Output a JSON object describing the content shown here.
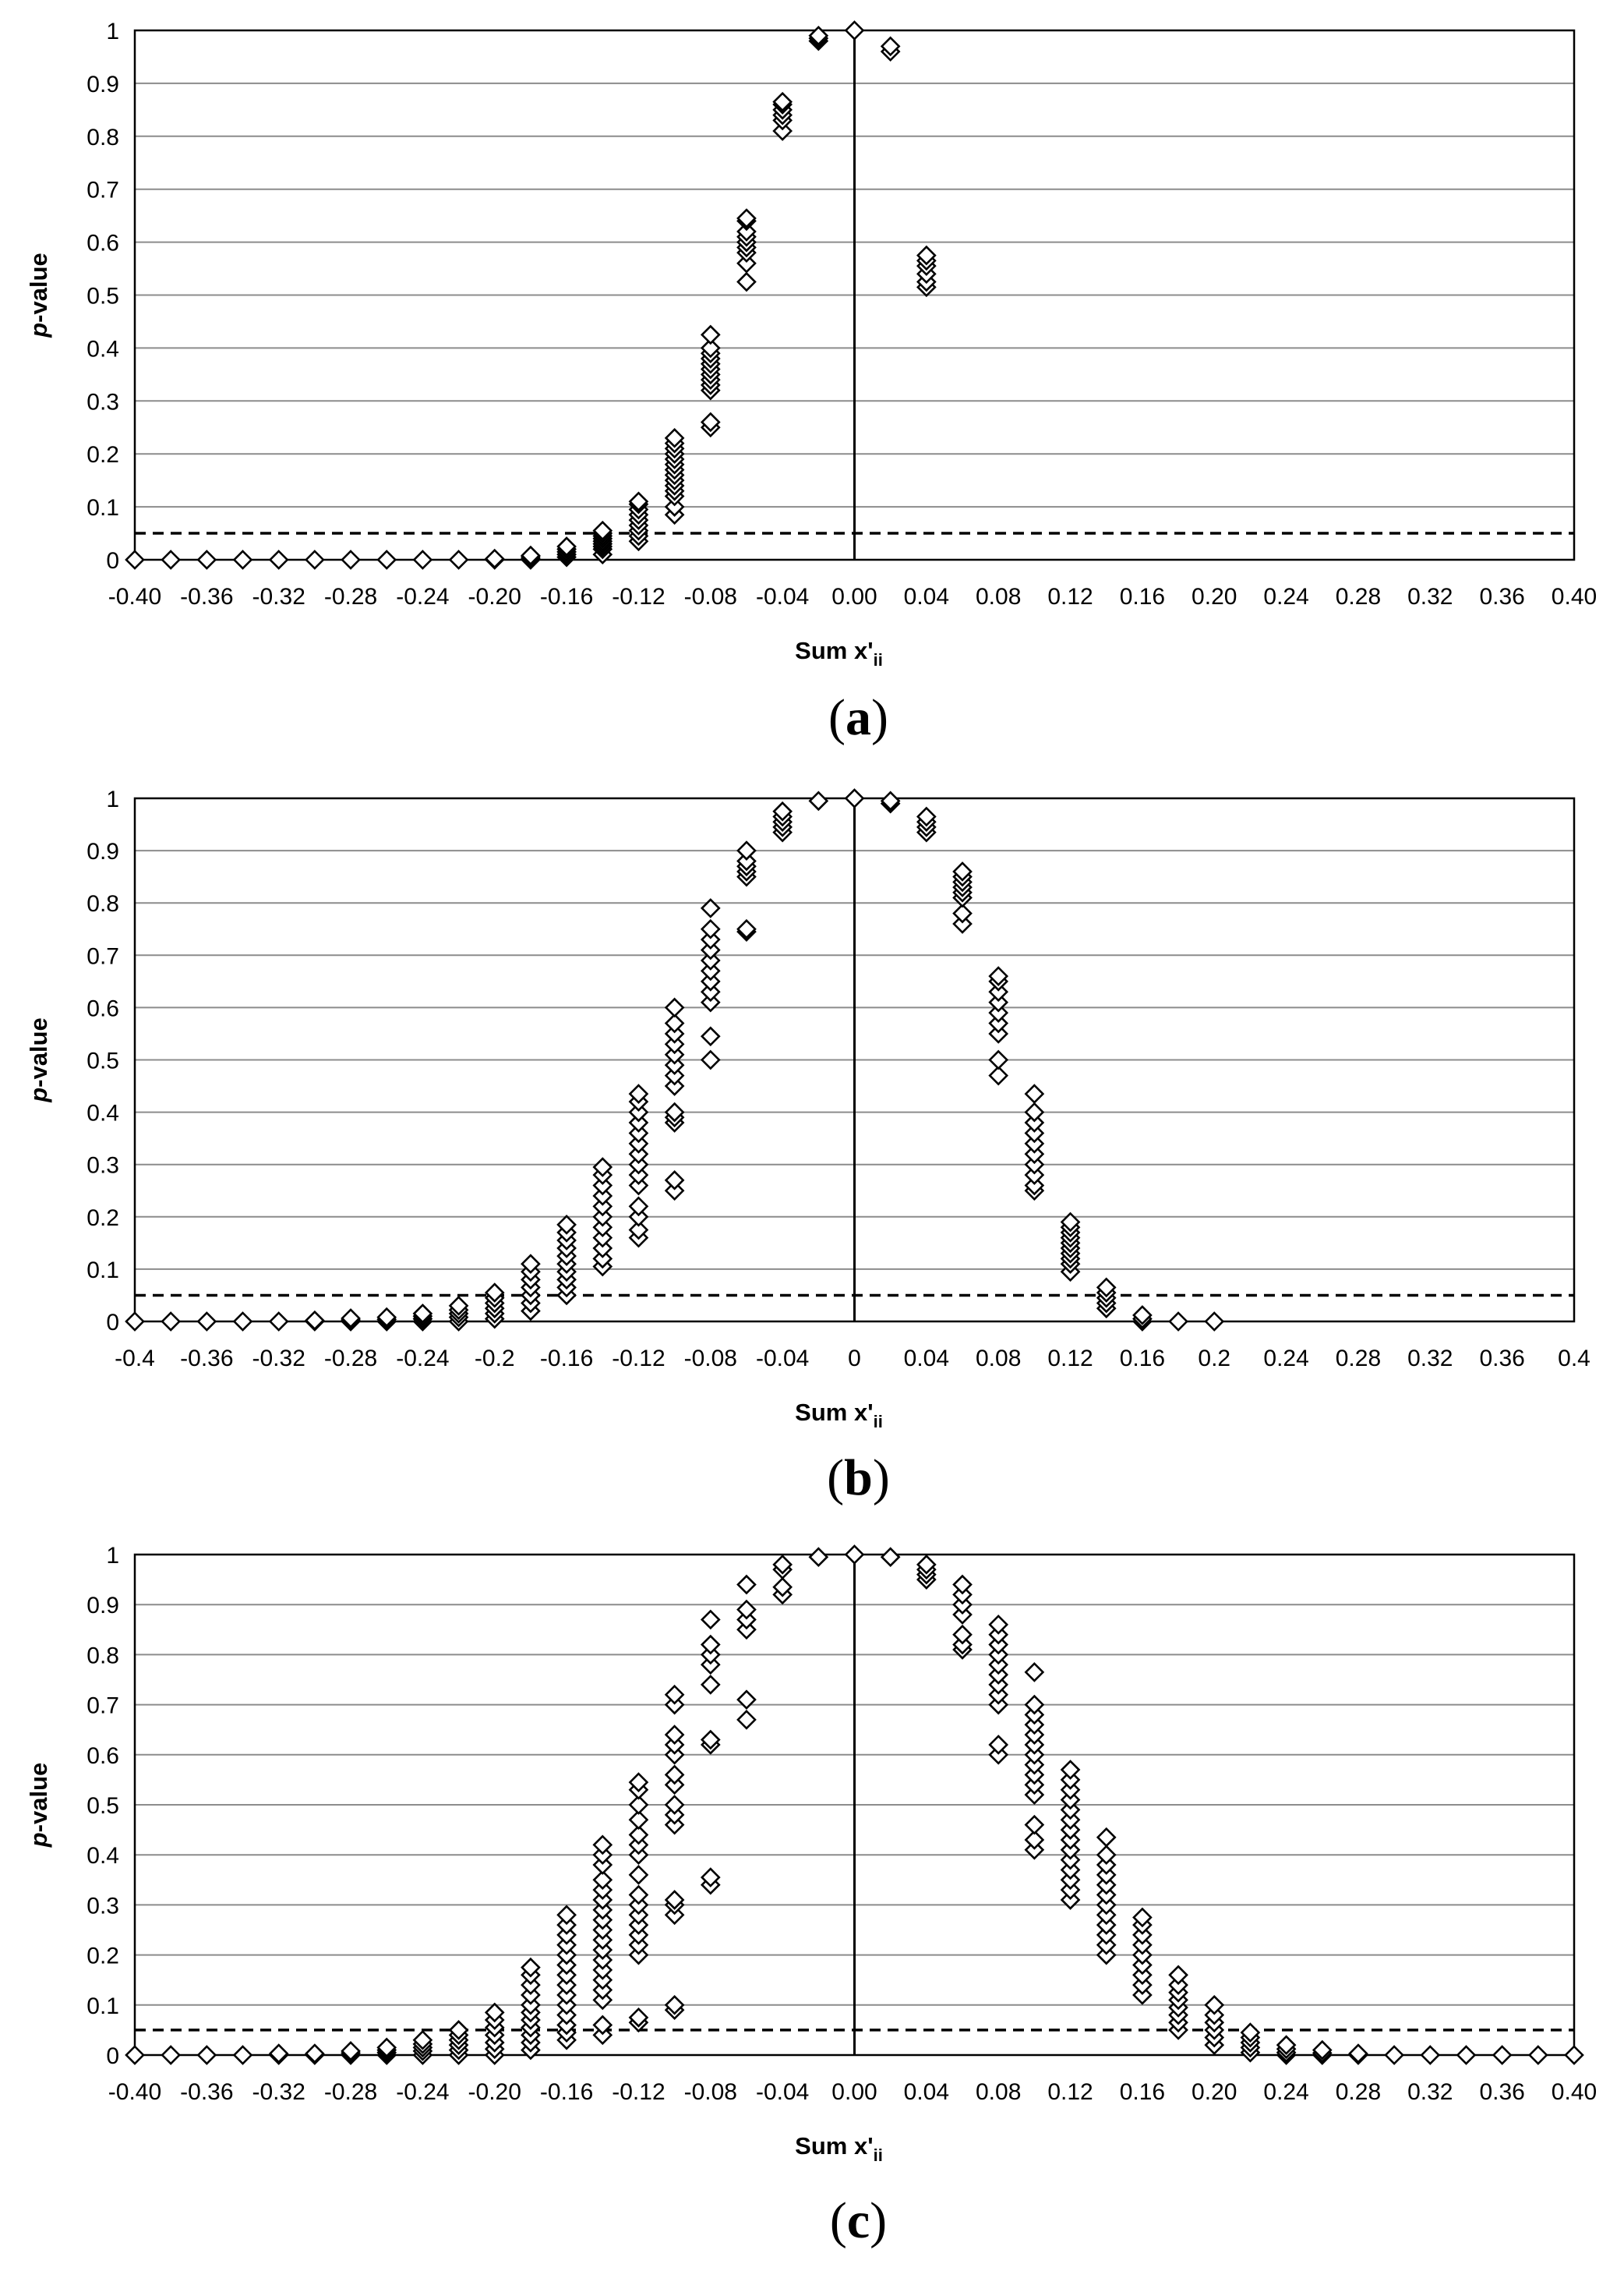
{
  "chart_data": [
    {
      "panel": "(a)",
      "type": "scatter",
      "xlabel": "Sum x'",
      "xlabel_sub": "ii",
      "ylabel_italic": "p",
      "ylabel_rest": "-value",
      "xlim": [
        -0.4,
        0.4
      ],
      "ylim": [
        0,
        1
      ],
      "yticks": [
        "0",
        "0.1",
        "0.2",
        "0.3",
        "0.4",
        "0.5",
        "0.6",
        "0.7",
        "0.8",
        "0.9",
        "1"
      ],
      "xticks": [
        "-0.40",
        "-0.36",
        "-0.32",
        "-0.28",
        "-0.24",
        "-0.20",
        "-0.16",
        "-0.12",
        "-0.08",
        "-0.04",
        "0.00",
        "0.04",
        "0.08",
        "0.12",
        "0.16",
        "0.20",
        "0.24",
        "0.28",
        "0.32",
        "0.36",
        "0.40"
      ],
      "reference_lines": {
        "vertical_x": 0,
        "dashed_y": 0.05
      },
      "grid": "horizontal",
      "points": [
        {
          "x": -0.4,
          "y": [
            0
          ]
        },
        {
          "x": -0.38,
          "y": [
            0
          ]
        },
        {
          "x": -0.36,
          "y": [
            0
          ]
        },
        {
          "x": -0.34,
          "y": [
            0
          ]
        },
        {
          "x": -0.32,
          "y": [
            0
          ]
        },
        {
          "x": -0.3,
          "y": [
            0
          ]
        },
        {
          "x": -0.28,
          "y": [
            0
          ]
        },
        {
          "x": -0.26,
          "y": [
            0
          ]
        },
        {
          "x": -0.24,
          "y": [
            0
          ]
        },
        {
          "x": -0.22,
          "y": [
            0
          ]
        },
        {
          "x": -0.2,
          "y": [
            0,
            0.002
          ]
        },
        {
          "x": -0.18,
          "y": [
            0,
            0.003,
            0.006,
            0.008
          ]
        },
        {
          "x": -0.16,
          "y": [
            0.005,
            0.01,
            0.015,
            0.02,
            0.025
          ]
        },
        {
          "x": -0.14,
          "y": [
            0.01,
            0.02,
            0.025,
            0.03,
            0.035,
            0.04,
            0.045,
            0.05,
            0.055
          ]
        },
        {
          "x": -0.12,
          "y": [
            0.035,
            0.045,
            0.055,
            0.065,
            0.075,
            0.085,
            0.095,
            0.105,
            0.11
          ]
        },
        {
          "x": -0.1,
          "y": [
            0.085,
            0.1,
            0.12,
            0.13,
            0.14,
            0.15,
            0.16,
            0.17,
            0.18,
            0.19,
            0.2,
            0.21,
            0.22,
            0.23
          ]
        },
        {
          "x": -0.08,
          "y": [
            0.25,
            0.26,
            0.32,
            0.33,
            0.34,
            0.35,
            0.36,
            0.37,
            0.38,
            0.39,
            0.4,
            0.425
          ]
        },
        {
          "x": -0.06,
          "y": [
            0.525,
            0.56,
            0.58,
            0.59,
            0.6,
            0.61,
            0.62,
            0.64,
            0.645
          ]
        },
        {
          "x": -0.04,
          "y": [
            0.81,
            0.83,
            0.84,
            0.85,
            0.86,
            0.865
          ]
        },
        {
          "x": -0.02,
          "y": [
            0.98,
            0.985,
            0.99
          ]
        },
        {
          "x": 0.0,
          "y": [
            1.0
          ]
        },
        {
          "x": 0.02,
          "y": [
            0.96,
            0.97
          ]
        },
        {
          "x": 0.04,
          "y": [
            0.515,
            0.525,
            0.54,
            0.555,
            0.565,
            0.575
          ]
        }
      ]
    },
    {
      "panel": "(b)",
      "type": "scatter",
      "xlabel": "Sum x'",
      "xlabel_sub": "ii",
      "ylabel_italic": "p",
      "ylabel_rest": "-value",
      "xlim": [
        -0.4,
        0.4
      ],
      "ylim": [
        0,
        1
      ],
      "yticks": [
        "0",
        "0.1",
        "0.2",
        "0.3",
        "0.4",
        "0.5",
        "0.6",
        "0.7",
        "0.8",
        "0.9",
        "1"
      ],
      "xticks": [
        "-0.4",
        "-0.36",
        "-0.32",
        "-0.28",
        "-0.24",
        "-0.2",
        "-0.16",
        "-0.12",
        "-0.08",
        "-0.04",
        "0",
        "0.04",
        "0.08",
        "0.12",
        "0.16",
        "0.2",
        "0.24",
        "0.28",
        "0.32",
        "0.36",
        "0.4"
      ],
      "reference_lines": {
        "vertical_x": 0,
        "dashed_y": 0.05
      },
      "grid": "horizontal",
      "points": [
        {
          "x": -0.4,
          "y": [
            0
          ]
        },
        {
          "x": -0.38,
          "y": [
            0
          ]
        },
        {
          "x": -0.36,
          "y": [
            0
          ]
        },
        {
          "x": -0.34,
          "y": [
            0
          ]
        },
        {
          "x": -0.32,
          "y": [
            0
          ]
        },
        {
          "x": -0.3,
          "y": [
            0,
            0.002
          ]
        },
        {
          "x": -0.28,
          "y": [
            0,
            0.003,
            0.006
          ]
        },
        {
          "x": -0.26,
          "y": [
            0,
            0.004,
            0.008
          ]
        },
        {
          "x": -0.24,
          "y": [
            0,
            0.005,
            0.01,
            0.015
          ]
        },
        {
          "x": -0.22,
          "y": [
            0,
            0.008,
            0.015,
            0.022,
            0.03
          ]
        },
        {
          "x": -0.2,
          "y": [
            0.005,
            0.015,
            0.025,
            0.035,
            0.045,
            0.055
          ]
        },
        {
          "x": -0.18,
          "y": [
            0.02,
            0.035,
            0.05,
            0.065,
            0.08,
            0.095,
            0.11
          ]
        },
        {
          "x": -0.16,
          "y": [
            0.05,
            0.065,
            0.08,
            0.095,
            0.11,
            0.125,
            0.14,
            0.155,
            0.17,
            0.185
          ]
        },
        {
          "x": -0.14,
          "y": [
            0.105,
            0.12,
            0.14,
            0.16,
            0.18,
            0.2,
            0.22,
            0.24,
            0.26,
            0.28,
            0.295
          ]
        },
        {
          "x": -0.12,
          "y": [
            0.16,
            0.175,
            0.2,
            0.22,
            0.26,
            0.28,
            0.3,
            0.32,
            0.34,
            0.36,
            0.38,
            0.4,
            0.42,
            0.435
          ]
        },
        {
          "x": -0.1,
          "y": [
            0.25,
            0.27,
            0.38,
            0.39,
            0.4,
            0.45,
            0.47,
            0.49,
            0.51,
            0.53,
            0.55,
            0.57,
            0.6
          ]
        },
        {
          "x": -0.08,
          "y": [
            0.5,
            0.545,
            0.61,
            0.63,
            0.65,
            0.67,
            0.69,
            0.71,
            0.73,
            0.75,
            0.79
          ]
        },
        {
          "x": -0.06,
          "y": [
            0.745,
            0.75,
            0.85,
            0.86,
            0.87,
            0.88,
            0.9
          ]
        },
        {
          "x": -0.04,
          "y": [
            0.935,
            0.945,
            0.955,
            0.965,
            0.975
          ]
        },
        {
          "x": -0.02,
          "y": [
            0.995
          ]
        },
        {
          "x": 0.0,
          "y": [
            1.0
          ]
        },
        {
          "x": 0.02,
          "y": [
            0.99,
            0.995
          ]
        },
        {
          "x": 0.04,
          "y": [
            0.935,
            0.945,
            0.955,
            0.965
          ]
        },
        {
          "x": 0.06,
          "y": [
            0.76,
            0.78,
            0.81,
            0.82,
            0.83,
            0.84,
            0.85,
            0.86
          ]
        },
        {
          "x": 0.08,
          "y": [
            0.47,
            0.5,
            0.55,
            0.57,
            0.59,
            0.61,
            0.63,
            0.65,
            0.66
          ]
        },
        {
          "x": 0.1,
          "y": [
            0.25,
            0.26,
            0.28,
            0.3,
            0.32,
            0.34,
            0.36,
            0.38,
            0.4,
            0.435
          ]
        },
        {
          "x": 0.12,
          "y": [
            0.095,
            0.11,
            0.12,
            0.13,
            0.14,
            0.15,
            0.16,
            0.17,
            0.18,
            0.19
          ]
        },
        {
          "x": 0.14,
          "y": [
            0.025,
            0.035,
            0.045,
            0.055,
            0.065
          ]
        },
        {
          "x": 0.16,
          "y": [
            0,
            0.005,
            0.012
          ]
        },
        {
          "x": 0.18,
          "y": [
            0
          ]
        },
        {
          "x": 0.2,
          "y": [
            0
          ]
        }
      ]
    },
    {
      "panel": "(c)",
      "type": "scatter",
      "xlabel": "Sum x'",
      "xlabel_sub": "ii",
      "ylabel_italic": "p",
      "ylabel_rest": "-value",
      "xlim": [
        -0.4,
        0.4
      ],
      "ylim": [
        0,
        1
      ],
      "yticks": [
        "0",
        "0.1",
        "0.2",
        "0.3",
        "0.4",
        "0.5",
        "0.6",
        "0.7",
        "0.8",
        "0.9",
        "1"
      ],
      "xticks": [
        "-0.40",
        "-0.36",
        "-0.32",
        "-0.28",
        "-0.24",
        "-0.20",
        "-0.16",
        "-0.12",
        "-0.08",
        "-0.04",
        "0.00",
        "0.04",
        "0.08",
        "0.12",
        "0.16",
        "0.20",
        "0.24",
        "0.28",
        "0.32",
        "0.36",
        "0.40"
      ],
      "reference_lines": {
        "vertical_x": 0,
        "dashed_y": 0.05
      },
      "grid": "horizontal",
      "points": [
        {
          "x": -0.4,
          "y": [
            0
          ]
        },
        {
          "x": -0.38,
          "y": [
            0
          ]
        },
        {
          "x": -0.36,
          "y": [
            0
          ]
        },
        {
          "x": -0.34,
          "y": [
            0
          ]
        },
        {
          "x": -0.32,
          "y": [
            0,
            0.003
          ]
        },
        {
          "x": -0.3,
          "y": [
            0,
            0.003
          ]
        },
        {
          "x": -0.28,
          "y": [
            0,
            0.004,
            0.008
          ]
        },
        {
          "x": -0.26,
          "y": [
            0,
            0.005,
            0.01,
            0.015
          ]
        },
        {
          "x": -0.24,
          "y": [
            0,
            0.008,
            0.015,
            0.022,
            0.03
          ]
        },
        {
          "x": -0.22,
          "y": [
            0,
            0.01,
            0.02,
            0.03,
            0.04,
            0.05
          ]
        },
        {
          "x": -0.2,
          "y": [
            0,
            0.012,
            0.025,
            0.04,
            0.055,
            0.07,
            0.085
          ]
        },
        {
          "x": -0.18,
          "y": [
            0.01,
            0.025,
            0.04,
            0.055,
            0.07,
            0.085,
            0.1,
            0.12,
            0.14,
            0.16,
            0.175
          ]
        },
        {
          "x": -0.16,
          "y": [
            0.03,
            0.045,
            0.06,
            0.08,
            0.1,
            0.12,
            0.14,
            0.16,
            0.18,
            0.2,
            0.22,
            0.24,
            0.26,
            0.28
          ]
        },
        {
          "x": -0.14,
          "y": [
            0.04,
            0.06,
            0.11,
            0.13,
            0.15,
            0.17,
            0.19,
            0.21,
            0.23,
            0.25,
            0.27,
            0.29,
            0.31,
            0.33,
            0.35,
            0.38,
            0.4,
            0.42
          ]
        },
        {
          "x": -0.12,
          "y": [
            0.065,
            0.075,
            0.2,
            0.22,
            0.24,
            0.26,
            0.28,
            0.3,
            0.32,
            0.36,
            0.4,
            0.42,
            0.44,
            0.47,
            0.5,
            0.53,
            0.545
          ]
        },
        {
          "x": -0.1,
          "y": [
            0.09,
            0.1,
            0.28,
            0.3,
            0.31,
            0.46,
            0.48,
            0.5,
            0.54,
            0.56,
            0.6,
            0.62,
            0.64,
            0.7,
            0.72
          ]
        },
        {
          "x": -0.08,
          "y": [
            0.34,
            0.355,
            0.62,
            0.63,
            0.74,
            0.78,
            0.8,
            0.82,
            0.87
          ]
        },
        {
          "x": -0.06,
          "y": [
            0.67,
            0.71,
            0.85,
            0.87,
            0.89,
            0.94
          ]
        },
        {
          "x": -0.04,
          "y": [
            0.92,
            0.935,
            0.97,
            0.98
          ]
        },
        {
          "x": -0.02,
          "y": [
            0.995
          ]
        },
        {
          "x": 0.0,
          "y": [
            1.0
          ]
        },
        {
          "x": 0.02,
          "y": [
            0.995
          ]
        },
        {
          "x": 0.04,
          "y": [
            0.95,
            0.96,
            0.97,
            0.98
          ]
        },
        {
          "x": 0.06,
          "y": [
            0.81,
            0.82,
            0.84,
            0.88,
            0.9,
            0.92,
            0.94
          ]
        },
        {
          "x": 0.08,
          "y": [
            0.6,
            0.62,
            0.7,
            0.72,
            0.74,
            0.76,
            0.78,
            0.8,
            0.82,
            0.84,
            0.86
          ]
        },
        {
          "x": 0.1,
          "y": [
            0.41,
            0.43,
            0.46,
            0.52,
            0.54,
            0.56,
            0.58,
            0.6,
            0.62,
            0.64,
            0.66,
            0.68,
            0.7,
            0.765
          ]
        },
        {
          "x": 0.12,
          "y": [
            0.31,
            0.33,
            0.35,
            0.37,
            0.39,
            0.41,
            0.43,
            0.45,
            0.47,
            0.49,
            0.51,
            0.53,
            0.55,
            0.57
          ]
        },
        {
          "x": 0.14,
          "y": [
            0.2,
            0.22,
            0.24,
            0.26,
            0.28,
            0.3,
            0.32,
            0.34,
            0.36,
            0.38,
            0.4,
            0.435
          ]
        },
        {
          "x": 0.16,
          "y": [
            0.12,
            0.14,
            0.16,
            0.18,
            0.2,
            0.22,
            0.24,
            0.26,
            0.275
          ]
        },
        {
          "x": 0.18,
          "y": [
            0.05,
            0.065,
            0.08,
            0.095,
            0.11,
            0.125,
            0.14,
            0.16
          ]
        },
        {
          "x": 0.2,
          "y": [
            0.02,
            0.035,
            0.05,
            0.065,
            0.08,
            0.1
          ]
        },
        {
          "x": 0.22,
          "y": [
            0.005,
            0.015,
            0.025,
            0.035,
            0.045
          ]
        },
        {
          "x": 0.24,
          "y": [
            0,
            0.005,
            0.012,
            0.02
          ]
        },
        {
          "x": 0.26,
          "y": [
            0,
            0.004,
            0.01
          ]
        },
        {
          "x": 0.28,
          "y": [
            0,
            0.003
          ]
        },
        {
          "x": 0.3,
          "y": [
            0
          ]
        },
        {
          "x": 0.32,
          "y": [
            0
          ]
        },
        {
          "x": 0.34,
          "y": [
            0
          ]
        },
        {
          "x": 0.36,
          "y": [
            0
          ]
        },
        {
          "x": 0.38,
          "y": [
            0
          ]
        },
        {
          "x": 0.4,
          "y": [
            0
          ]
        }
      ]
    }
  ]
}
